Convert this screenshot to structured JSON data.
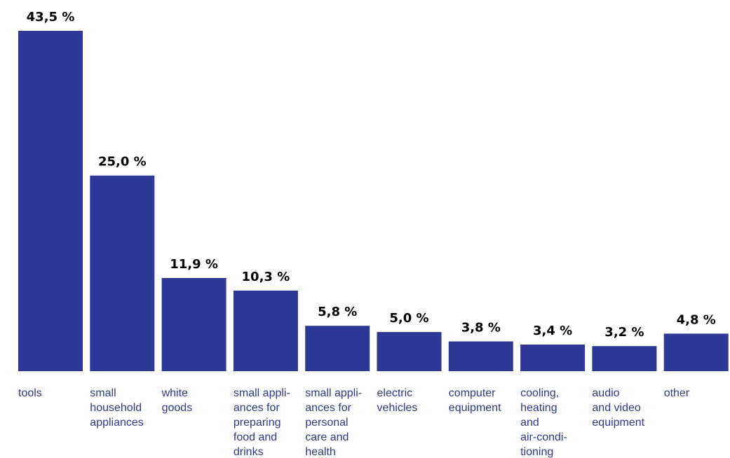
{
  "colors": {
    "bar": "#2e3896",
    "label": "#2e3a8f",
    "value": "#000000"
  },
  "chart_data": {
    "type": "bar",
    "title": "",
    "xlabel": "",
    "ylabel": "",
    "ylim": [
      0,
      43.5
    ],
    "grid": false,
    "categories": [
      [
        "tools"
      ],
      [
        "small",
        "household",
        "appliances"
      ],
      [
        "white",
        "goods"
      ],
      [
        "small appli-",
        "ances for",
        "preparing",
        "food and",
        "drinks"
      ],
      [
        "small appli-",
        "ances for",
        "personal",
        "care and",
        "health"
      ],
      [
        "electric",
        "vehicles"
      ],
      [
        "computer",
        "equipment"
      ],
      [
        "cooling,",
        "heating",
        "and",
        "air-condi-",
        "tioning"
      ],
      [
        "audio",
        "and video",
        "equipment"
      ],
      [
        "other"
      ]
    ],
    "values": [
      43.5,
      25.0,
      11.9,
      10.3,
      5.8,
      5.0,
      3.8,
      3.4,
      3.2,
      4.8
    ],
    "value_labels": [
      "43,5 %",
      "25,0 %",
      "11,9 %",
      "10,3 %",
      "5,8 %",
      "5,0 %",
      "3,8 %",
      "3,4 %",
      "3,2 %",
      "4,8 %"
    ]
  }
}
